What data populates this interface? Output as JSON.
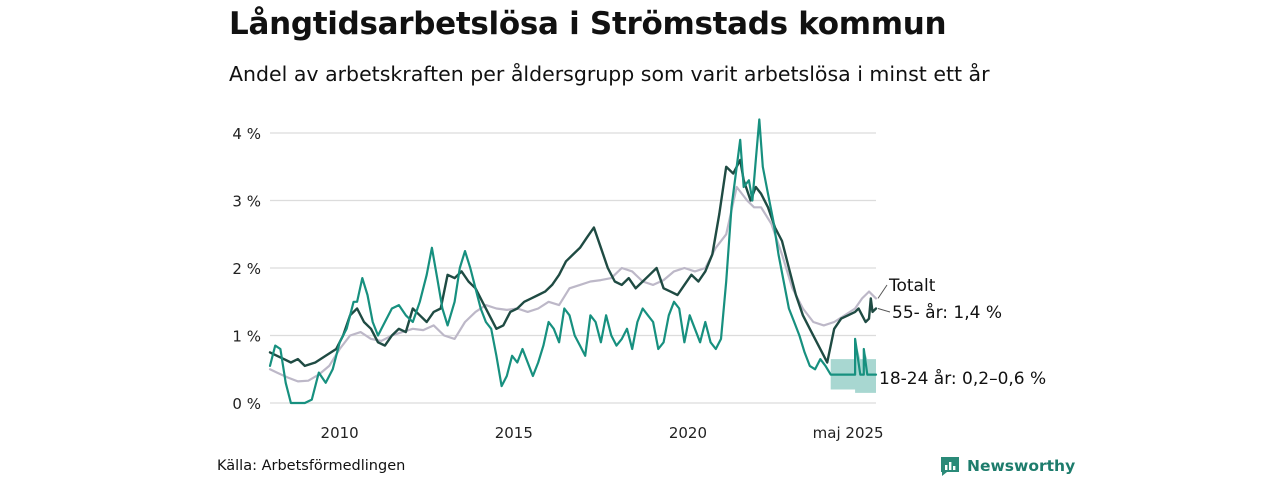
{
  "title": "Långtidsarbetslösa i Strömstads kommun",
  "subtitle": "Andel av arbetskraften per åldersgrupp som varit arbetslösa i minst ett år",
  "source": "Källa: Arbetsförmedlingen",
  "brand": "Newsworthy",
  "colors": {
    "total": "#bdb8c8",
    "age55": "#1f4b43",
    "age18_24": "#17907f",
    "band": "#9ed3cc",
    "grid": "#dcdcdc"
  },
  "chart_data": {
    "type": "line",
    "x_range": [
      2008.0,
      2025.4
    ],
    "ylim": [
      0,
      4.2
    ],
    "y_ticks": [
      {
        "v": 0,
        "label": "0 %"
      },
      {
        "v": 1,
        "label": "1 %"
      },
      {
        "v": 2,
        "label": "2 %"
      },
      {
        "v": 3,
        "label": "3 %"
      },
      {
        "v": 4,
        "label": "4 %"
      }
    ],
    "x_ticks": [
      {
        "v": 2010,
        "label": "2010"
      },
      {
        "v": 2015,
        "label": "2015"
      },
      {
        "v": 2020,
        "label": "2020"
      },
      {
        "v": 2024.6,
        "label": "maj 2025"
      }
    ],
    "series": [
      {
        "name": "Totalt",
        "label_text": "Totalt",
        "color_key": "total",
        "width": 2.2,
        "points": [
          [
            2008.0,
            0.5
          ],
          [
            2008.2,
            0.45
          ],
          [
            2008.5,
            0.38
          ],
          [
            2008.8,
            0.32
          ],
          [
            2009.1,
            0.33
          ],
          [
            2009.4,
            0.42
          ],
          [
            2009.7,
            0.55
          ],
          [
            2010.0,
            0.8
          ],
          [
            2010.3,
            1.0
          ],
          [
            2010.6,
            1.05
          ],
          [
            2010.9,
            0.95
          ],
          [
            2011.2,
            0.92
          ],
          [
            2011.5,
            1.0
          ],
          [
            2011.8,
            1.05
          ],
          [
            2012.1,
            1.1
          ],
          [
            2012.4,
            1.08
          ],
          [
            2012.7,
            1.15
          ],
          [
            2013.0,
            1.0
          ],
          [
            2013.3,
            0.95
          ],
          [
            2013.6,
            1.2
          ],
          [
            2013.9,
            1.35
          ],
          [
            2014.2,
            1.45
          ],
          [
            2014.5,
            1.4
          ],
          [
            2014.8,
            1.38
          ],
          [
            2015.1,
            1.4
          ],
          [
            2015.4,
            1.35
          ],
          [
            2015.7,
            1.4
          ],
          [
            2016.0,
            1.5
          ],
          [
            2016.3,
            1.45
          ],
          [
            2016.6,
            1.7
          ],
          [
            2016.9,
            1.75
          ],
          [
            2017.2,
            1.8
          ],
          [
            2017.5,
            1.82
          ],
          [
            2017.8,
            1.85
          ],
          [
            2018.1,
            2.0
          ],
          [
            2018.4,
            1.95
          ],
          [
            2018.7,
            1.8
          ],
          [
            2019.0,
            1.75
          ],
          [
            2019.3,
            1.82
          ],
          [
            2019.6,
            1.95
          ],
          [
            2019.9,
            2.0
          ],
          [
            2020.2,
            1.95
          ],
          [
            2020.5,
            2.0
          ],
          [
            2020.8,
            2.3
          ],
          [
            2021.1,
            2.5
          ],
          [
            2021.4,
            3.2
          ],
          [
            2021.7,
            3.0
          ],
          [
            2021.9,
            2.9
          ],
          [
            2022.1,
            2.9
          ],
          [
            2022.4,
            2.65
          ],
          [
            2022.7,
            2.2
          ],
          [
            2023.0,
            1.7
          ],
          [
            2023.3,
            1.4
          ],
          [
            2023.6,
            1.2
          ],
          [
            2023.9,
            1.15
          ],
          [
            2024.2,
            1.2
          ],
          [
            2024.5,
            1.3
          ],
          [
            2024.8,
            1.4
          ],
          [
            2025.0,
            1.55
          ],
          [
            2025.2,
            1.65
          ],
          [
            2025.4,
            1.55
          ]
        ]
      },
      {
        "name": "55- år",
        "label_text": "55- år: 1,4 %",
        "color_key": "age55",
        "width": 2.4,
        "points": [
          [
            2008.0,
            0.75
          ],
          [
            2008.2,
            0.7
          ],
          [
            2008.4,
            0.65
          ],
          [
            2008.6,
            0.6
          ],
          [
            2008.8,
            0.65
          ],
          [
            2009.0,
            0.55
          ],
          [
            2009.3,
            0.6
          ],
          [
            2009.6,
            0.7
          ],
          [
            2009.9,
            0.8
          ],
          [
            2010.1,
            1.0
          ],
          [
            2010.3,
            1.3
          ],
          [
            2010.5,
            1.4
          ],
          [
            2010.7,
            1.2
          ],
          [
            2010.9,
            1.1
          ],
          [
            2011.1,
            0.9
          ],
          [
            2011.3,
            0.85
          ],
          [
            2011.5,
            1.0
          ],
          [
            2011.7,
            1.1
          ],
          [
            2011.9,
            1.05
          ],
          [
            2012.1,
            1.4
          ],
          [
            2012.3,
            1.3
          ],
          [
            2012.5,
            1.2
          ],
          [
            2012.7,
            1.35
          ],
          [
            2012.9,
            1.4
          ],
          [
            2013.1,
            1.9
          ],
          [
            2013.3,
            1.85
          ],
          [
            2013.5,
            1.95
          ],
          [
            2013.7,
            1.8
          ],
          [
            2013.9,
            1.7
          ],
          [
            2014.1,
            1.5
          ],
          [
            2014.3,
            1.3
          ],
          [
            2014.5,
            1.1
          ],
          [
            2014.7,
            1.15
          ],
          [
            2014.9,
            1.35
          ],
          [
            2015.1,
            1.4
          ],
          [
            2015.3,
            1.5
          ],
          [
            2015.5,
            1.55
          ],
          [
            2015.7,
            1.6
          ],
          [
            2015.9,
            1.65
          ],
          [
            2016.1,
            1.75
          ],
          [
            2016.3,
            1.9
          ],
          [
            2016.5,
            2.1
          ],
          [
            2016.7,
            2.2
          ],
          [
            2016.9,
            2.3
          ],
          [
            2017.1,
            2.45
          ],
          [
            2017.3,
            2.6
          ],
          [
            2017.5,
            2.3
          ],
          [
            2017.7,
            2.0
          ],
          [
            2017.9,
            1.8
          ],
          [
            2018.1,
            1.75
          ],
          [
            2018.3,
            1.85
          ],
          [
            2018.5,
            1.7
          ],
          [
            2018.7,
            1.8
          ],
          [
            2018.9,
            1.9
          ],
          [
            2019.1,
            2.0
          ],
          [
            2019.3,
            1.7
          ],
          [
            2019.5,
            1.65
          ],
          [
            2019.7,
            1.6
          ],
          [
            2019.9,
            1.75
          ],
          [
            2020.1,
            1.9
          ],
          [
            2020.3,
            1.8
          ],
          [
            2020.5,
            1.95
          ],
          [
            2020.7,
            2.2
          ],
          [
            2020.9,
            2.8
          ],
          [
            2021.1,
            3.5
          ],
          [
            2021.3,
            3.4
          ],
          [
            2021.5,
            3.6
          ],
          [
            2021.6,
            3.3
          ],
          [
            2021.8,
            3.0
          ],
          [
            2021.95,
            3.2
          ],
          [
            2022.1,
            3.1
          ],
          [
            2022.3,
            2.9
          ],
          [
            2022.5,
            2.6
          ],
          [
            2022.7,
            2.4
          ],
          [
            2022.9,
            2.0
          ],
          [
            2023.1,
            1.6
          ],
          [
            2023.3,
            1.3
          ],
          [
            2023.5,
            1.1
          ],
          [
            2023.7,
            0.9
          ],
          [
            2023.9,
            0.7
          ],
          [
            2024.0,
            0.6
          ],
          [
            2024.2,
            1.1
          ],
          [
            2024.4,
            1.25
          ],
          [
            2024.6,
            1.3
          ],
          [
            2024.8,
            1.35
          ],
          [
            2024.9,
            1.4
          ],
          [
            2025.0,
            1.3
          ],
          [
            2025.1,
            1.2
          ],
          [
            2025.2,
            1.25
          ],
          [
            2025.25,
            1.55
          ],
          [
            2025.3,
            1.35
          ],
          [
            2025.4,
            1.4
          ]
        ]
      },
      {
        "name": "18-24 år",
        "label_text": "18-24 år: 0,2–0,6 %",
        "color_key": "age18_24",
        "width": 2.2,
        "points": [
          [
            2008.0,
            0.55
          ],
          [
            2008.15,
            0.85
          ],
          [
            2008.3,
            0.8
          ],
          [
            2008.45,
            0.3
          ],
          [
            2008.6,
            0.0
          ],
          [
            2008.8,
            0.0
          ],
          [
            2009.0,
            0.0
          ],
          [
            2009.2,
            0.05
          ],
          [
            2009.4,
            0.45
          ],
          [
            2009.6,
            0.3
          ],
          [
            2009.8,
            0.5
          ],
          [
            2010.0,
            0.9
          ],
          [
            2010.2,
            1.1
          ],
          [
            2010.4,
            1.5
          ],
          [
            2010.5,
            1.5
          ],
          [
            2010.65,
            1.85
          ],
          [
            2010.8,
            1.6
          ],
          [
            2010.95,
            1.2
          ],
          [
            2011.1,
            1.0
          ],
          [
            2011.3,
            1.2
          ],
          [
            2011.5,
            1.4
          ],
          [
            2011.7,
            1.45
          ],
          [
            2011.9,
            1.3
          ],
          [
            2012.1,
            1.2
          ],
          [
            2012.3,
            1.5
          ],
          [
            2012.5,
            1.9
          ],
          [
            2012.65,
            2.3
          ],
          [
            2012.8,
            1.85
          ],
          [
            2012.95,
            1.4
          ],
          [
            2013.1,
            1.15
          ],
          [
            2013.3,
            1.5
          ],
          [
            2013.45,
            2.0
          ],
          [
            2013.6,
            2.25
          ],
          [
            2013.75,
            2.0
          ],
          [
            2013.9,
            1.7
          ],
          [
            2014.05,
            1.4
          ],
          [
            2014.2,
            1.2
          ],
          [
            2014.35,
            1.1
          ],
          [
            2014.5,
            0.7
          ],
          [
            2014.65,
            0.25
          ],
          [
            2014.8,
            0.4
          ],
          [
            2014.95,
            0.7
          ],
          [
            2015.1,
            0.6
          ],
          [
            2015.25,
            0.8
          ],
          [
            2015.4,
            0.6
          ],
          [
            2015.55,
            0.4
          ],
          [
            2015.7,
            0.6
          ],
          [
            2015.85,
            0.85
          ],
          [
            2016.0,
            1.2
          ],
          [
            2016.15,
            1.1
          ],
          [
            2016.3,
            0.9
          ],
          [
            2016.45,
            1.4
          ],
          [
            2016.6,
            1.3
          ],
          [
            2016.75,
            1.0
          ],
          [
            2016.9,
            0.85
          ],
          [
            2017.05,
            0.7
          ],
          [
            2017.2,
            1.3
          ],
          [
            2017.35,
            1.2
          ],
          [
            2017.5,
            0.9
          ],
          [
            2017.65,
            1.3
          ],
          [
            2017.8,
            1.0
          ],
          [
            2017.95,
            0.85
          ],
          [
            2018.1,
            0.95
          ],
          [
            2018.25,
            1.1
          ],
          [
            2018.4,
            0.8
          ],
          [
            2018.55,
            1.2
          ],
          [
            2018.7,
            1.4
          ],
          [
            2018.85,
            1.3
          ],
          [
            2019.0,
            1.2
          ],
          [
            2019.15,
            0.8
          ],
          [
            2019.3,
            0.9
          ],
          [
            2019.45,
            1.3
          ],
          [
            2019.6,
            1.5
          ],
          [
            2019.75,
            1.4
          ],
          [
            2019.9,
            0.9
          ],
          [
            2020.05,
            1.3
          ],
          [
            2020.2,
            1.1
          ],
          [
            2020.35,
            0.9
          ],
          [
            2020.5,
            1.2
          ],
          [
            2020.65,
            0.9
          ],
          [
            2020.8,
            0.8
          ],
          [
            2020.95,
            0.95
          ],
          [
            2021.1,
            1.8
          ],
          [
            2021.25,
            2.9
          ],
          [
            2021.4,
            3.5
          ],
          [
            2021.5,
            3.9
          ],
          [
            2021.6,
            3.2
          ],
          [
            2021.75,
            3.3
          ],
          [
            2021.85,
            3.0
          ],
          [
            2021.95,
            3.6
          ],
          [
            2022.05,
            4.2
          ],
          [
            2022.15,
            3.5
          ],
          [
            2022.3,
            3.1
          ],
          [
            2022.45,
            2.7
          ],
          [
            2022.6,
            2.2
          ],
          [
            2022.75,
            1.8
          ],
          [
            2022.9,
            1.4
          ],
          [
            2023.05,
            1.2
          ],
          [
            2023.2,
            1.0
          ],
          [
            2023.35,
            0.75
          ],
          [
            2023.5,
            0.55
          ],
          [
            2023.65,
            0.5
          ],
          [
            2023.8,
            0.65
          ],
          [
            2023.95,
            0.55
          ],
          [
            2024.1,
            0.42
          ],
          [
            2024.8,
            0.42
          ],
          [
            2024.8,
            0.95
          ],
          [
            2024.95,
            0.42
          ],
          [
            2025.05,
            0.42
          ],
          [
            2025.05,
            0.8
          ],
          [
            2025.15,
            0.42
          ],
          [
            2025.4,
            0.42
          ]
        ],
        "band": [
          [
            2024.1,
            0.2,
            0.65
          ],
          [
            2024.8,
            0.2,
            0.65
          ],
          [
            2024.8,
            0.15,
            0.95
          ],
          [
            2024.95,
            0.15,
            0.65
          ],
          [
            2025.05,
            0.15,
            0.65
          ],
          [
            2025.05,
            0.15,
            0.8
          ],
          [
            2025.15,
            0.15,
            0.65
          ],
          [
            2025.4,
            0.15,
            0.65
          ]
        ]
      }
    ],
    "grid": true,
    "legend": "inline-right"
  }
}
